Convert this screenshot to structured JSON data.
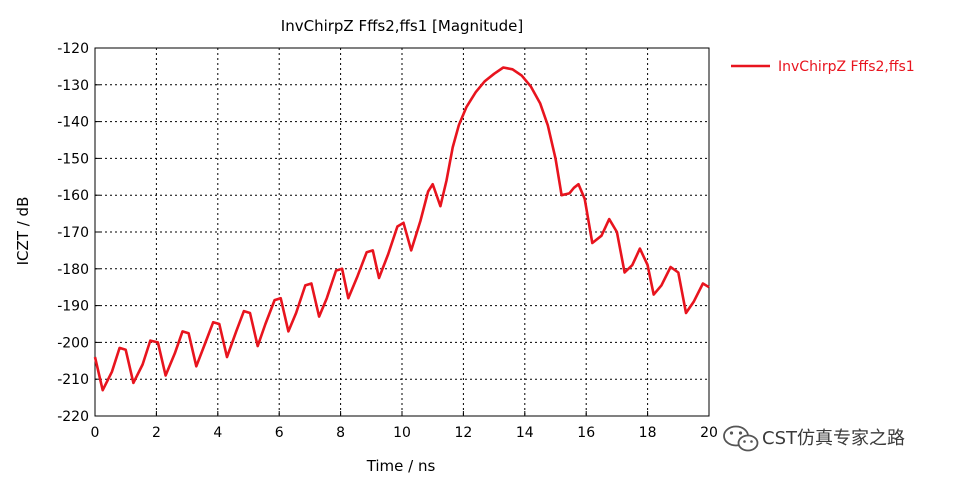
{
  "chart_data": {
    "type": "line",
    "title": "InvChirpZ Fffs2,ffs1 [Magnitude]",
    "xlabel": "Time / ns",
    "ylabel": "ICZT / dB",
    "xlim": [
      0,
      20
    ],
    "ylim": [
      -220,
      -120
    ],
    "x_ticks": [
      0,
      2,
      4,
      6,
      8,
      10,
      12,
      14,
      16,
      18,
      20
    ],
    "y_ticks": [
      -120,
      -130,
      -140,
      -150,
      -160,
      -170,
      -180,
      -190,
      -200,
      -210,
      -220
    ],
    "x_tick_labels": [
      "0",
      "2",
      "4",
      "6",
      "8",
      "10",
      "12",
      "14",
      "16",
      "18",
      "20"
    ],
    "y_tick_labels": [
      "-120",
      "-130",
      "-140",
      "-150",
      "-160",
      "-170",
      "-180",
      "-190",
      "-200",
      "-210",
      "-220"
    ],
    "grid": true,
    "legend_position": "top-right outside plot",
    "series": [
      {
        "name": "InvChirpZ Fffs2,ffs1",
        "color": "#e8141e",
        "points": [
          [
            0.0,
            -204
          ],
          [
            0.25,
            -213
          ],
          [
            0.55,
            -208
          ],
          [
            0.8,
            -201.5
          ],
          [
            1.0,
            -202
          ],
          [
            1.25,
            -211
          ],
          [
            1.55,
            -206
          ],
          [
            1.8,
            -199.5
          ],
          [
            2.05,
            -200
          ],
          [
            2.3,
            -209
          ],
          [
            2.6,
            -203
          ],
          [
            2.85,
            -197
          ],
          [
            3.05,
            -197.5
          ],
          [
            3.3,
            -206.5
          ],
          [
            3.6,
            -200
          ],
          [
            3.85,
            -194.5
          ],
          [
            4.05,
            -195
          ],
          [
            4.3,
            -204
          ],
          [
            4.6,
            -197
          ],
          [
            4.85,
            -191.5
          ],
          [
            5.05,
            -192
          ],
          [
            5.3,
            -201
          ],
          [
            5.55,
            -195
          ],
          [
            5.85,
            -188.5
          ],
          [
            6.05,
            -188
          ],
          [
            6.3,
            -197
          ],
          [
            6.55,
            -192
          ],
          [
            6.85,
            -184.5
          ],
          [
            7.05,
            -184
          ],
          [
            7.3,
            -193
          ],
          [
            7.55,
            -188
          ],
          [
            7.85,
            -180.5
          ],
          [
            8.05,
            -180
          ],
          [
            8.25,
            -188
          ],
          [
            8.55,
            -182
          ],
          [
            8.85,
            -175.5
          ],
          [
            9.05,
            -175
          ],
          [
            9.25,
            -182.5
          ],
          [
            9.55,
            -176
          ],
          [
            9.85,
            -168.5
          ],
          [
            10.05,
            -167.5
          ],
          [
            10.3,
            -175
          ],
          [
            10.6,
            -167
          ],
          [
            10.85,
            -159
          ],
          [
            11.0,
            -157
          ],
          [
            11.25,
            -163
          ],
          [
            11.45,
            -156
          ],
          [
            11.65,
            -147
          ],
          [
            11.85,
            -141
          ],
          [
            12.1,
            -136
          ],
          [
            12.4,
            -132
          ],
          [
            12.7,
            -129
          ],
          [
            13.0,
            -127
          ],
          [
            13.3,
            -125.3
          ],
          [
            13.6,
            -125.8
          ],
          [
            13.9,
            -127.5
          ],
          [
            14.2,
            -130.5
          ],
          [
            14.5,
            -135
          ],
          [
            14.75,
            -141
          ],
          [
            15.0,
            -150
          ],
          [
            15.2,
            -160
          ],
          [
            15.45,
            -159.5
          ],
          [
            15.6,
            -158
          ],
          [
            15.75,
            -157
          ],
          [
            15.95,
            -161
          ],
          [
            16.2,
            -173
          ],
          [
            16.5,
            -171
          ],
          [
            16.75,
            -166.5
          ],
          [
            17.0,
            -170
          ],
          [
            17.25,
            -181
          ],
          [
            17.5,
            -179
          ],
          [
            17.75,
            -174.5
          ],
          [
            18.0,
            -179
          ],
          [
            18.2,
            -187
          ],
          [
            18.45,
            -184.5
          ],
          [
            18.75,
            -179.5
          ],
          [
            19.0,
            -181
          ],
          [
            19.25,
            -192
          ],
          [
            19.5,
            -189
          ],
          [
            19.8,
            -184
          ],
          [
            20.0,
            -185
          ]
        ]
      }
    ]
  },
  "watermark": {
    "text": "CST仿真专家之路",
    "icon": "wechat-icon"
  }
}
